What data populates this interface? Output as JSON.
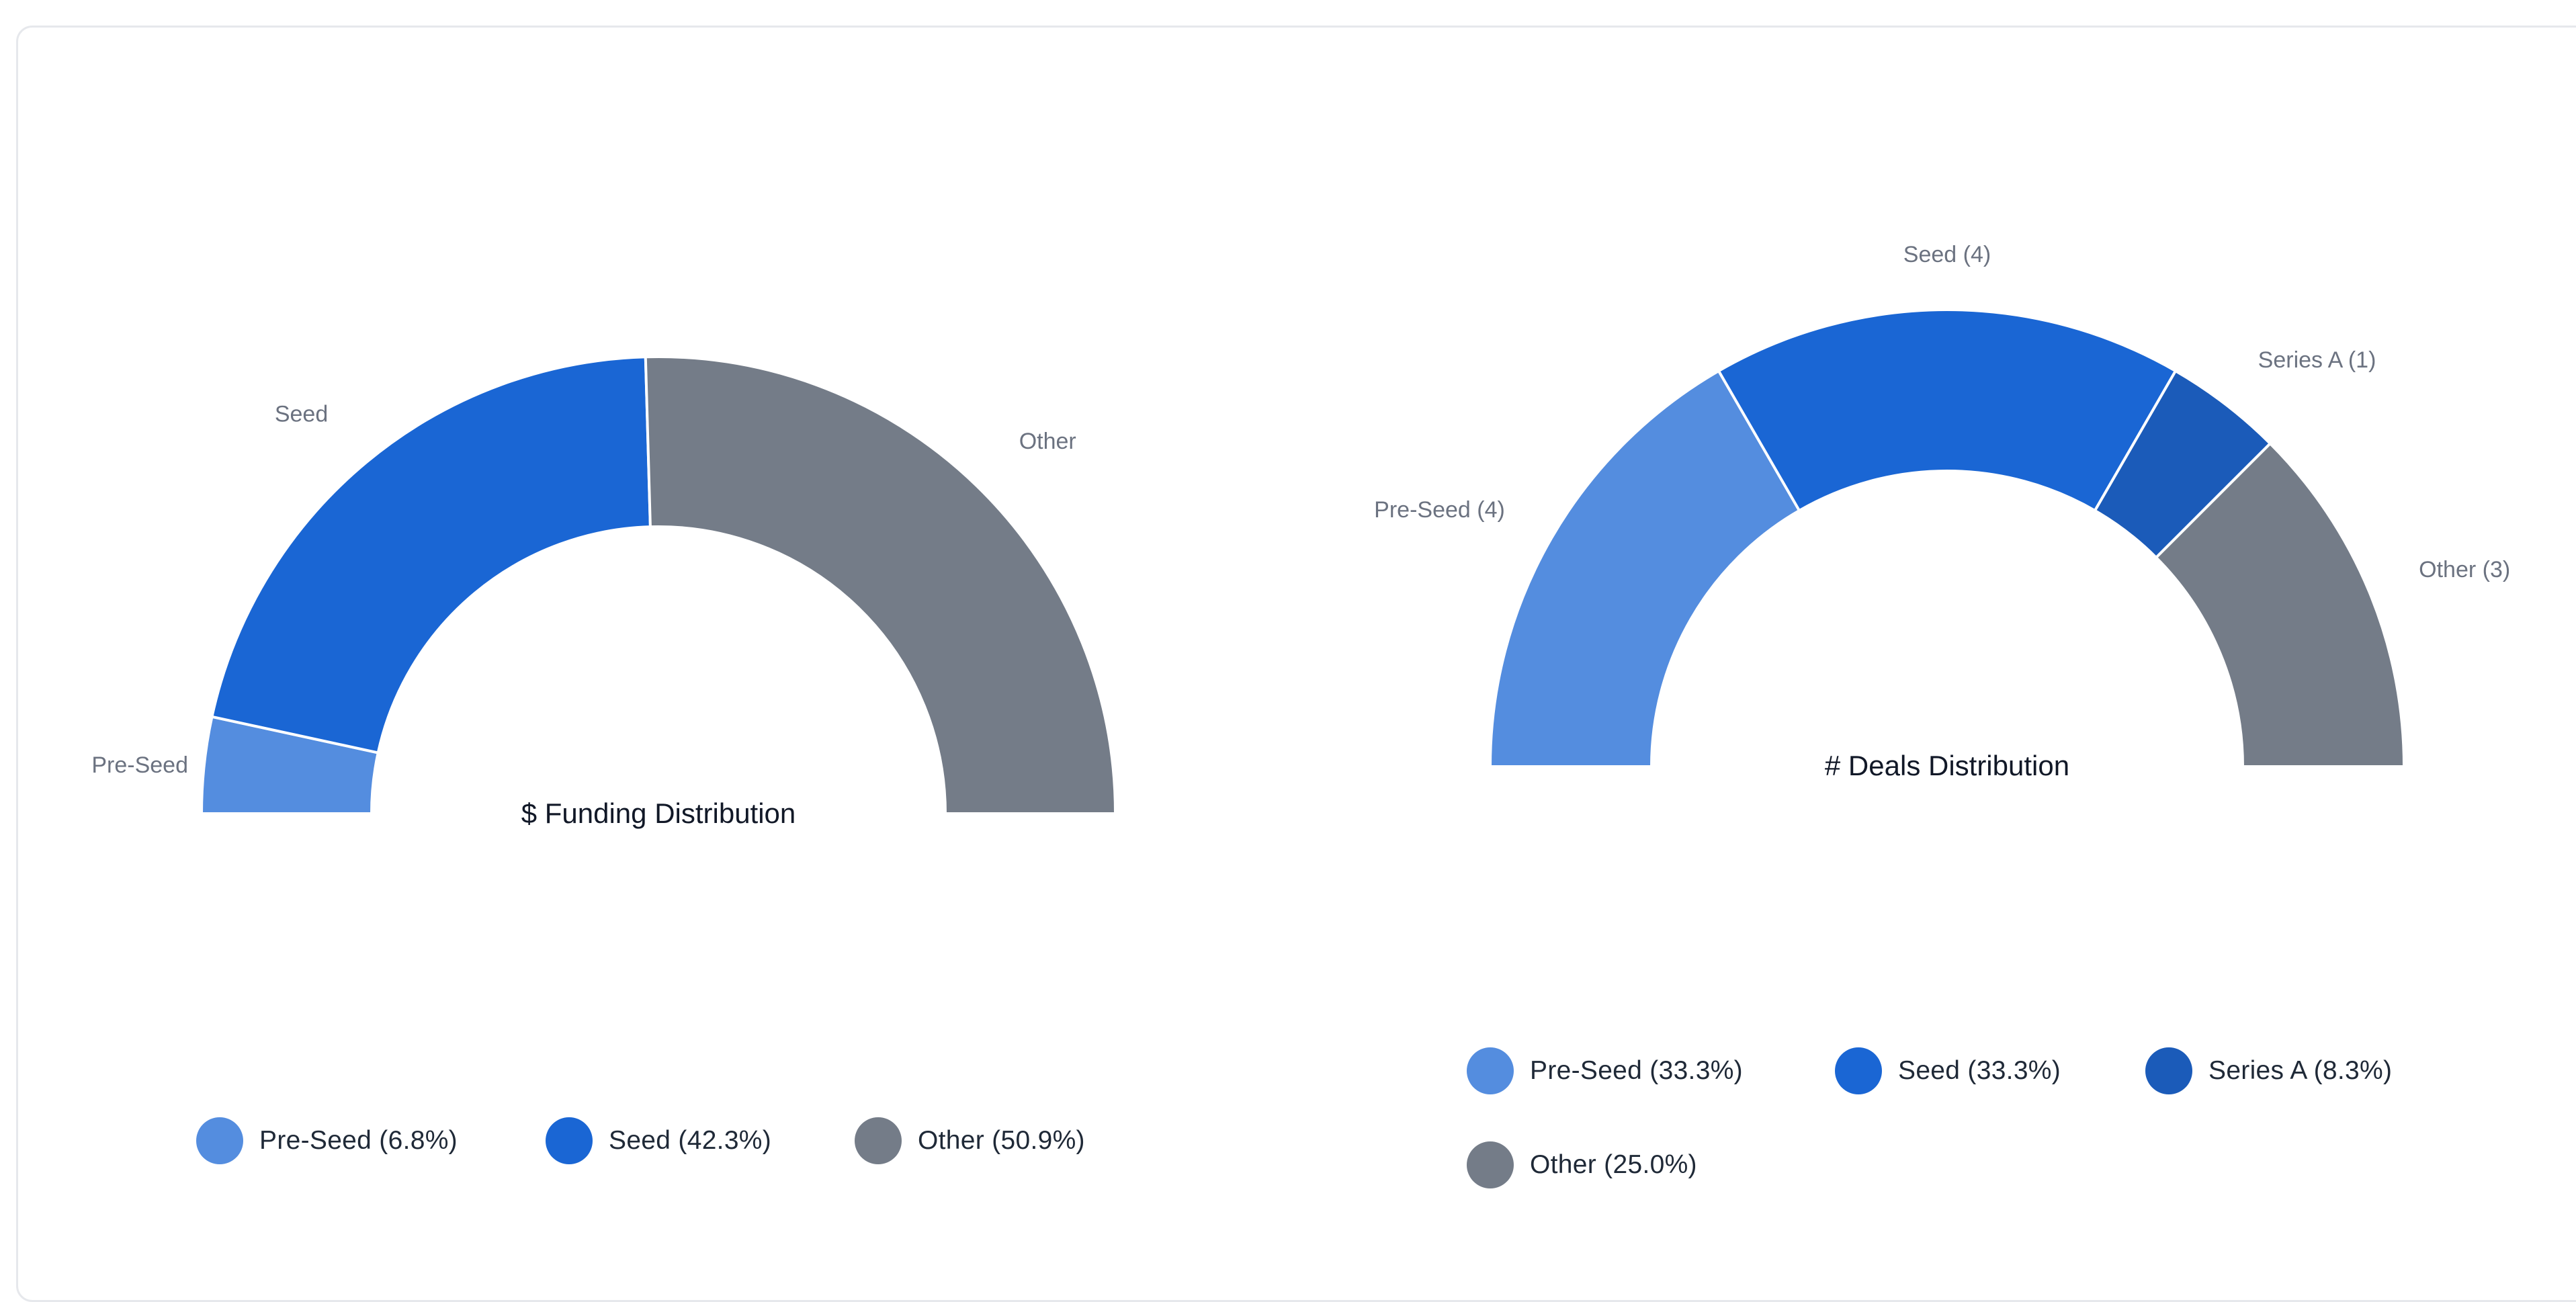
{
  "chart_data": [
    {
      "type": "pie",
      "subtype": "half-donut",
      "title": "$ Funding Distribution",
      "categories": [
        "Pre-Seed",
        "Seed",
        "Other"
      ],
      "values": [
        6.8,
        42.3,
        50.9
      ],
      "unit": "%",
      "slice_labels": [
        "Pre-Seed",
        "Seed",
        "Other"
      ],
      "colors": [
        "#548ddf",
        "#1a66d4",
        "#747c88"
      ],
      "legend": [
        "Pre-Seed (6.8%)",
        "Seed (42.3%)",
        "Other (50.9%)"
      ],
      "legend_position": "bottom"
    },
    {
      "type": "pie",
      "subtype": "half-donut",
      "title": "# Deals Distribution",
      "categories": [
        "Pre-Seed",
        "Seed",
        "Series A",
        "Other"
      ],
      "values": [
        4,
        4,
        1,
        3
      ],
      "slice_labels": [
        "Pre-Seed (4)",
        "Seed (4)",
        "Series A (1)",
        "Other (3)"
      ],
      "colors": [
        "#548ddf",
        "#1a66d4",
        "#1b5bb9",
        "#747c88"
      ],
      "legend": [
        "Pre-Seed (33.3%)",
        "Seed (33.3%)",
        "Series A (8.3%)",
        "Other (25.0%)"
      ],
      "legend_position": "bottom"
    }
  ]
}
